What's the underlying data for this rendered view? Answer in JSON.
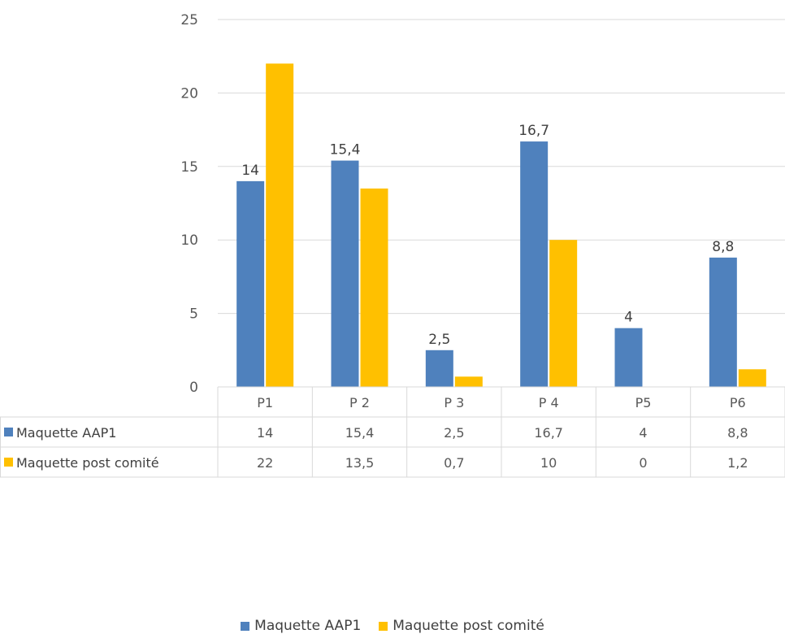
{
  "chart_data": {
    "type": "bar",
    "title": "",
    "xlabel": "",
    "ylabel": "",
    "categories": [
      "P1",
      "P 2",
      "P 3",
      "P 4",
      "P5",
      "P6"
    ],
    "ylim": [
      0,
      25
    ],
    "yticks": [
      0,
      5,
      10,
      15,
      20,
      25
    ],
    "grid": true,
    "legend_position": "bottom",
    "data_table": true,
    "series": [
      {
        "name": "Maquette AAP1",
        "values": [
          14,
          15.4,
          2.5,
          16.7,
          4,
          8.8
        ],
        "labels": [
          "14",
          "15,4",
          "2,5",
          "16,7",
          "4",
          "8,8"
        ],
        "color": "#4f81bd"
      },
      {
        "name": "Maquette post comité",
        "values": [
          22,
          13.5,
          0.7,
          10,
          0,
          1.2
        ],
        "labels": [
          "22",
          "13,5",
          "0,7",
          "10",
          "0",
          "1,2"
        ],
        "color": "#ffc000"
      }
    ]
  }
}
